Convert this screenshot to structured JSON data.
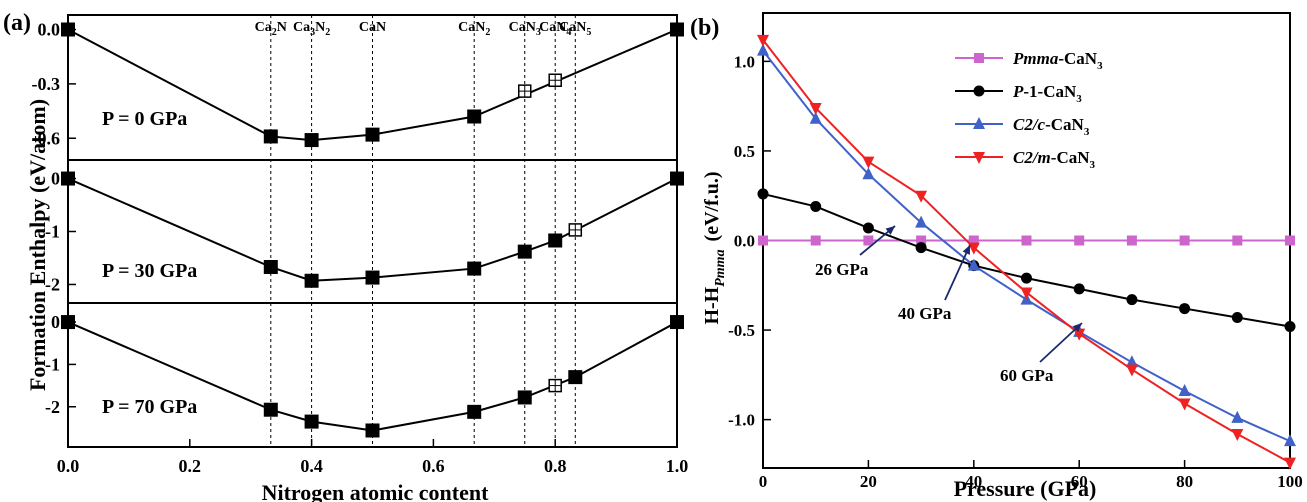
{
  "panel_a": {
    "tag": "(a)",
    "ylabel": "Formation Enthalpy (eV/atom)",
    "xlabel": "Nitrogen atomic content",
    "x_ticks": [
      "0.0",
      "0.2",
      "0.4",
      "0.6",
      "0.8",
      "1.0"
    ],
    "compounds": [
      {
        "x": 0.333,
        "base": "Ca",
        "sub1": "2",
        "mid": "N",
        "sub2": ""
      },
      {
        "x": 0.4,
        "base": "Ca",
        "sub1": "3",
        "mid": "N",
        "sub2": "2"
      },
      {
        "x": 0.5,
        "base": "CaN",
        "sub1": "",
        "mid": "",
        "sub2": ""
      },
      {
        "x": 0.667,
        "base": "CaN",
        "sub1": "2",
        "mid": "",
        "sub2": ""
      },
      {
        "x": 0.75,
        "base": "CaN",
        "sub1": "3",
        "mid": "",
        "sub2": ""
      },
      {
        "x": 0.8,
        "base": "CaN",
        "sub1": "4",
        "mid": "",
        "sub2": ""
      },
      {
        "x": 0.833,
        "base": "CaN",
        "sub1": "5",
        "mid": "",
        "sub2": ""
      }
    ]
  },
  "panel_b": {
    "tag": "(b)",
    "ylabel_main": "H-H",
    "ylabel_sub": "Pmma",
    "ylabel_unit": "(eV/f.u.)",
    "xlabel": "Pressure (GPa)",
    "x_ticks": [
      "0",
      "20",
      "40",
      "60",
      "80",
      "100"
    ],
    "y_ticks": [
      "1.0",
      "0.5",
      "0.0",
      "-0.5",
      "-1.0"
    ],
    "legend": [
      {
        "italic": "Pmma",
        "rest": "-CaN",
        "sub": "3"
      },
      {
        "italic": "P",
        "rest": "-1-CaN",
        "sub": "3"
      },
      {
        "italic": "C2/c",
        "rest": "-CaN",
        "sub": "3"
      },
      {
        "italic": "C2/m",
        "rest": "-CaN",
        "sub": "3"
      }
    ],
    "annotations": [
      "26 GPa",
      "40 GPa",
      "60 GPa"
    ]
  },
  "chart_data": [
    {
      "type": "line",
      "panel": "a",
      "title": "P = 0 GPa",
      "xlabel": "Nitrogen atomic content",
      "ylabel": "Formation Enthalpy (eV/atom)",
      "xlim": [
        0,
        1
      ],
      "ylim": [
        -0.72,
        0.08
      ],
      "y_ticks": [
        "0.0",
        "-0.3",
        "-0.6"
      ],
      "y_tick_values": [
        0,
        -0.3,
        -0.6
      ],
      "points": [
        {
          "x": 0.0,
          "y": 0.0,
          "stable": true
        },
        {
          "x": 0.333,
          "y": -0.59,
          "stable": true
        },
        {
          "x": 0.4,
          "y": -0.61,
          "stable": true
        },
        {
          "x": 0.5,
          "y": -0.58,
          "stable": true
        },
        {
          "x": 0.667,
          "y": -0.48,
          "stable": true
        },
        {
          "x": 0.75,
          "y": -0.34,
          "stable": false
        },
        {
          "x": 0.8,
          "y": -0.28,
          "stable": false
        },
        {
          "x": 1.0,
          "y": 0.0,
          "stable": true
        }
      ],
      "hull": [
        [
          0.0,
          0.0
        ],
        [
          0.333,
          -0.59
        ],
        [
          0.4,
          -0.61
        ],
        [
          0.5,
          -0.58
        ],
        [
          0.667,
          -0.48
        ],
        [
          1.0,
          0.0
        ]
      ]
    },
    {
      "type": "line",
      "panel": "a",
      "title": "P = 30 GPa",
      "xlim": [
        0,
        1
      ],
      "ylim": [
        -2.35,
        0.35
      ],
      "y_ticks": [
        "0",
        "-1",
        "-2"
      ],
      "y_tick_values": [
        0,
        -1,
        -2
      ],
      "points": [
        {
          "x": 0.0,
          "y": 0.0,
          "stable": true
        },
        {
          "x": 0.333,
          "y": -1.67,
          "stable": true
        },
        {
          "x": 0.4,
          "y": -1.93,
          "stable": true
        },
        {
          "x": 0.5,
          "y": -1.87,
          "stable": true
        },
        {
          "x": 0.667,
          "y": -1.7,
          "stable": true
        },
        {
          "x": 0.75,
          "y": -1.38,
          "stable": true
        },
        {
          "x": 0.8,
          "y": -1.17,
          "stable": true
        },
        {
          "x": 0.833,
          "y": -0.97,
          "stable": false
        },
        {
          "x": 1.0,
          "y": 0.0,
          "stable": true
        }
      ],
      "hull": [
        [
          0.0,
          0.0
        ],
        [
          0.333,
          -1.67
        ],
        [
          0.4,
          -1.93
        ],
        [
          0.5,
          -1.87
        ],
        [
          0.667,
          -1.7
        ],
        [
          0.75,
          -1.38
        ],
        [
          0.8,
          -1.17
        ],
        [
          1.0,
          0.0
        ]
      ]
    },
    {
      "type": "line",
      "panel": "a",
      "title": "P = 70 GPa",
      "xlim": [
        0,
        1
      ],
      "ylim": [
        -2.95,
        0.45
      ],
      "y_ticks": [
        "0",
        "-1",
        "-2"
      ],
      "y_tick_values": [
        0,
        -1,
        -2
      ],
      "points": [
        {
          "x": 0.0,
          "y": 0.0,
          "stable": true
        },
        {
          "x": 0.333,
          "y": -2.07,
          "stable": true
        },
        {
          "x": 0.4,
          "y": -2.35,
          "stable": true
        },
        {
          "x": 0.5,
          "y": -2.56,
          "stable": true
        },
        {
          "x": 0.667,
          "y": -2.12,
          "stable": true
        },
        {
          "x": 0.75,
          "y": -1.78,
          "stable": true
        },
        {
          "x": 0.8,
          "y": -1.5,
          "stable": false
        },
        {
          "x": 0.833,
          "y": -1.3,
          "stable": true
        },
        {
          "x": 1.0,
          "y": 0.0,
          "stable": true
        }
      ],
      "hull": [
        [
          0.0,
          0.0
        ],
        [
          0.333,
          -2.07
        ],
        [
          0.4,
          -2.35
        ],
        [
          0.5,
          -2.56
        ],
        [
          0.667,
          -2.12
        ],
        [
          0.75,
          -1.78
        ],
        [
          0.833,
          -1.3
        ],
        [
          1.0,
          0.0
        ]
      ]
    },
    {
      "type": "line",
      "panel": "b",
      "xlabel": "Pressure (GPa)",
      "ylabel": "H-H Pmma (eV/f.u.)",
      "xlim": [
        0,
        100
      ],
      "ylim": [
        -1.27,
        1.27
      ],
      "x": [
        0,
        10,
        20,
        30,
        40,
        50,
        60,
        70,
        80,
        90,
        100
      ],
      "series": [
        {
          "name": "Pmma-CaN3",
          "color": "#cc66cc",
          "marker": "square",
          "values": [
            0,
            0,
            0,
            0,
            0,
            0,
            0,
            0,
            0,
            0,
            0
          ]
        },
        {
          "name": "P-1-CaN3",
          "color": "#000000",
          "marker": "circle",
          "values": [
            0.26,
            0.19,
            0.07,
            -0.04,
            -0.14,
            -0.21,
            -0.27,
            -0.33,
            -0.38,
            -0.43,
            -0.48
          ]
        },
        {
          "name": "C2/c-CaN3",
          "color": "#3f61c8",
          "marker": "triangle-up",
          "values": [
            1.06,
            0.68,
            0.37,
            0.1,
            -0.14,
            -0.33,
            -0.51,
            -0.68,
            -0.84,
            -0.99,
            -1.12
          ]
        },
        {
          "name": "C2/m-CaN3",
          "color": "#ee2222",
          "marker": "triangle-down",
          "values": [
            1.12,
            0.74,
            0.44,
            0.25,
            -0.04,
            -0.29,
            -0.52,
            -0.72,
            -0.91,
            -1.08,
            -1.24
          ]
        }
      ],
      "annotations": [
        {
          "text": "26 GPa",
          "x": 26,
          "y": 0.0
        },
        {
          "text": "40 GPa",
          "x": 40,
          "y": -0.14
        },
        {
          "text": "60 GPa",
          "x": 60,
          "y": -0.51
        }
      ]
    }
  ]
}
